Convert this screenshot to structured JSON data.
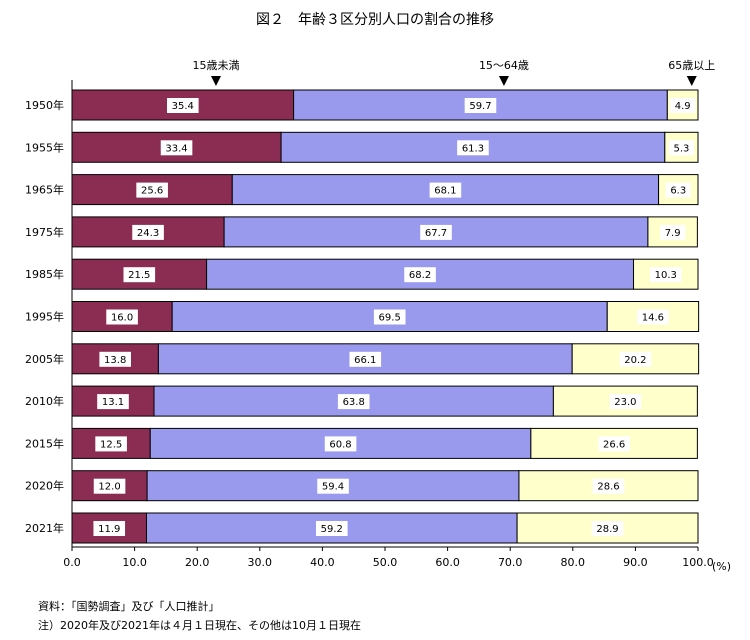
{
  "chart_data": {
    "type": "bar",
    "orientation": "horizontal",
    "stacked": true,
    "title": "図２　年齢３区分別人口の割合の推移",
    "xlabel": "(%)",
    "xlim": [
      0,
      100
    ],
    "xticks": [
      "0.0",
      "10.0",
      "20.0",
      "30.0",
      "40.0",
      "50.0",
      "60.0",
      "70.0",
      "80.0",
      "90.0",
      "100.0"
    ],
    "categories": [
      "1950年",
      "1955年",
      "1965年",
      "1975年",
      "1985年",
      "1995年",
      "2005年",
      "2010年",
      "2015年",
      "2020年",
      "2021年"
    ],
    "series": [
      {
        "name": "15歳未満",
        "color": "#8b2d52",
        "values": [
          35.4,
          33.4,
          25.6,
          24.3,
          21.5,
          16.0,
          13.8,
          13.1,
          12.5,
          12.0,
          11.9
        ],
        "labels": [
          "35.4",
          "33.4",
          "25.6",
          "24.3",
          "21.5",
          "16.0",
          "13.8",
          "13.1",
          "12.5",
          "12.0",
          "11.9"
        ]
      },
      {
        "name": "15～64歳",
        "color": "#9999ee",
        "values": [
          59.7,
          61.3,
          68.1,
          67.7,
          68.2,
          69.5,
          66.1,
          63.8,
          60.8,
          59.4,
          59.2
        ],
        "labels": [
          "59.7",
          "61.3",
          "68.1",
          "67.7",
          "68.2",
          "69.5",
          "66.1",
          "63.8",
          "60.8",
          "59.4",
          "59.2"
        ]
      },
      {
        "name": "65歳以上",
        "color": "#ffffcc",
        "values": [
          4.9,
          5.3,
          6.3,
          7.9,
          10.3,
          14.6,
          20.2,
          23.0,
          26.6,
          28.6,
          28.9
        ],
        "labels": [
          "4.9",
          "5.3",
          "6.3",
          "7.9",
          "10.3",
          "14.6",
          "20.2",
          "23.0",
          "26.6",
          "28.6",
          "28.9"
        ]
      }
    ],
    "legend_markers": [
      {
        "label": "15歳未満",
        "at": 23
      },
      {
        "label": "15～64歳",
        "at": 69
      },
      {
        "label": "65歳以上",
        "at": 99
      }
    ],
    "grid": false
  },
  "notes": {
    "source": "資料：「国勢調査」及び「人口推計」",
    "note": "注）2020年及び2021年は４月１日現在、その他は10月１日現在"
  }
}
